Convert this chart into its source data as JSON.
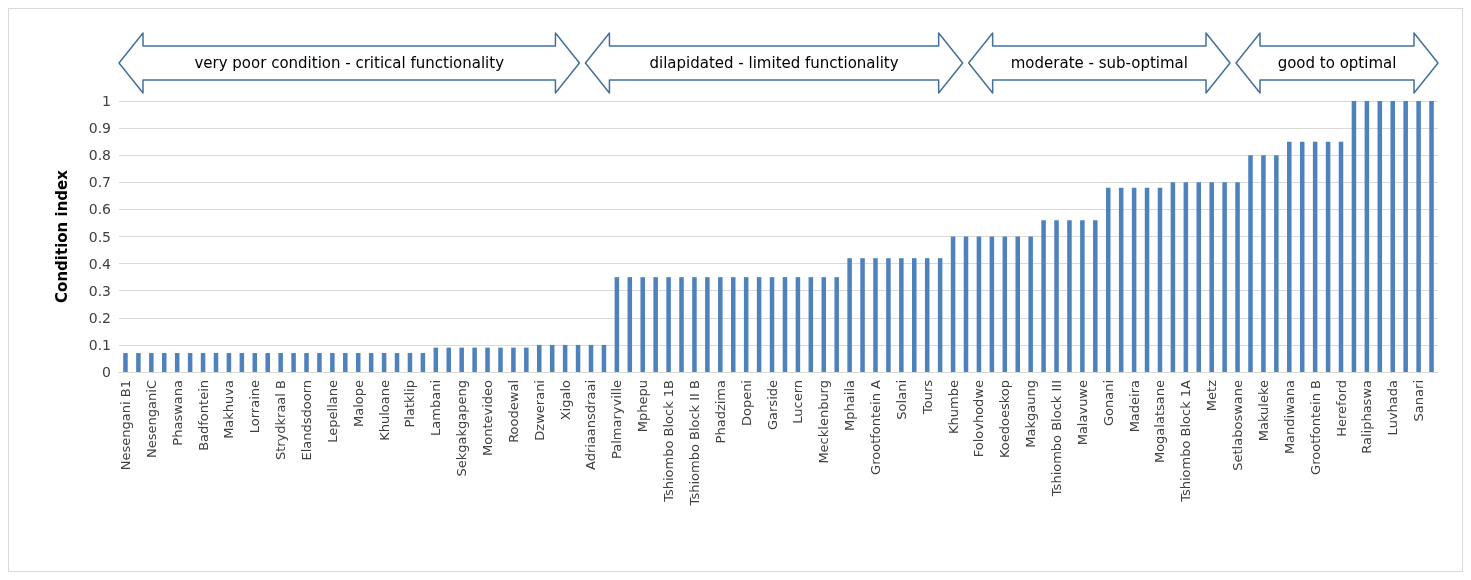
{
  "chart_data": {
    "type": "bar",
    "ylabel": "Condition index",
    "categories": [
      "Nesengani B1",
      null,
      "NesenganiC",
      null,
      "Phaswana",
      null,
      "Badfontein",
      null,
      "Makhuva",
      null,
      "Lorraine",
      null,
      "Strydkraal B",
      null,
      "Elandsdoorn",
      null,
      "Lepellane",
      null,
      "Malope",
      null,
      "Khuloane",
      null,
      "Platklip",
      null,
      "Lambani",
      null,
      "Sekgakgapeng",
      null,
      "Montevideo",
      null,
      "Roodewal",
      null,
      "Dzwerani",
      null,
      "Xigalo",
      null,
      "Adriaansdraai",
      null,
      "Palmaryville",
      null,
      "Mphepu",
      null,
      "Tshiombo Block 1B",
      null,
      "Tshiombo Block II B",
      null,
      "Phadzima",
      null,
      "Dopeni",
      null,
      "Garside",
      null,
      "Lucern",
      null,
      "Mecklenburg",
      null,
      "Mphaila",
      null,
      "Grootfontein A",
      null,
      "Solani",
      null,
      "Tours",
      null,
      "Khumbe",
      null,
      "Folovhodwe",
      null,
      "Koedoeskop",
      null,
      "Makgaung",
      null,
      "Tshiombo Block III",
      null,
      "Malavuwe",
      null,
      "Gonani",
      null,
      "Madeira",
      null,
      "Mogalatsane",
      null,
      "Tshiombo Block 1A",
      null,
      "Metz",
      null,
      "Setlaboswane",
      null,
      "Makuleke",
      null,
      "Mandiwana",
      null,
      "Grootfontein B",
      null,
      "Hereford",
      null,
      "Raliphaswa",
      null,
      "Luvhada",
      null,
      "Sanari",
      null
    ],
    "values": [
      0.07,
      0.07,
      0.07,
      0.07,
      0.07,
      0.07,
      0.07,
      0.07,
      0.07,
      0.07,
      0.07,
      0.07,
      0.07,
      0.07,
      0.07,
      0.07,
      0.07,
      0.07,
      0.07,
      0.07,
      0.07,
      0.07,
      0.07,
      0.07,
      0.09,
      0.09,
      0.09,
      0.09,
      0.09,
      0.09,
      0.09,
      0.09,
      0.1,
      0.1,
      0.1,
      0.1,
      0.1,
      0.1,
      0.35,
      0.35,
      0.35,
      0.35,
      0.35,
      0.35,
      0.35,
      0.35,
      0.35,
      0.35,
      0.35,
      0.35,
      0.35,
      0.35,
      0.35,
      0.35,
      0.35,
      0.35,
      0.42,
      0.42,
      0.42,
      0.42,
      0.42,
      0.42,
      0.42,
      0.42,
      0.5,
      0.5,
      0.5,
      0.5,
      0.5,
      0.5,
      0.5,
      0.56,
      0.56,
      0.56,
      0.56,
      0.56,
      0.68,
      0.68,
      0.68,
      0.68,
      0.68,
      0.7,
      0.7,
      0.7,
      0.7,
      0.7,
      0.7,
      0.8,
      0.8,
      0.8,
      0.85,
      0.85,
      0.85,
      0.85,
      0.85,
      1,
      1,
      1,
      1,
      1,
      1,
      1
    ],
    "color": "#4f81bd",
    "ylim": [
      0,
      1
    ],
    "yticks": [
      0,
      0.1,
      0.2,
      0.3,
      0.4,
      0.5,
      0.6,
      0.7,
      0.8,
      0.9,
      1
    ],
    "grid": "y",
    "annotations": [
      "very poor condition - critical functionality",
      "dilapidated - limited functionality",
      "moderate - sub-optimal",
      "good to optimal"
    ]
  }
}
